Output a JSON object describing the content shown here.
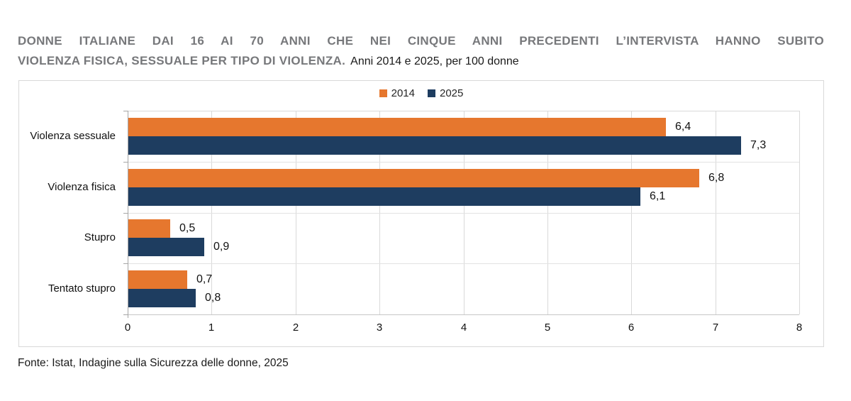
{
  "title": {
    "line1": "DONNE ITALIANE DAI 16 AI 70 ANNI CHE NEI CINQUE ANNI PRECEDENTI L’INTERVISTA HANNO SUBITO",
    "line2_bold": "VIOLENZA FISICA, SESSUALE PER TIPO DI VIOLENZA.",
    "line2_regular": "Anni 2014 e 2025, per 100 donne"
  },
  "footer": {
    "source": "Fonte: Istat, Indagine sulla Sicurezza delle donne, 2025"
  },
  "colors": {
    "series_2014": "#e6772e",
    "series_2025": "#1e3d60",
    "gridline": "#d9d9d9",
    "axis": "#a6a6a6"
  },
  "chart_data": {
    "type": "bar",
    "orientation": "horizontal",
    "title": "Donne italiane dai 16 ai 70 anni che nei cinque anni precedenti l’intervista hanno subito violenza fisica, sessuale per tipo di violenza",
    "subtitle": "Anni 2014 e 2025, per 100 donne",
    "categories": [
      "Violenza sessuale",
      "Violenza fisica",
      "Stupro",
      "Tentato stupro"
    ],
    "series": [
      {
        "name": "2014",
        "color": "#e6772e",
        "values": [
          6.4,
          6.8,
          0.5,
          0.7
        ],
        "value_labels": [
          "6,4",
          "6,8",
          "0,5",
          "0,7"
        ]
      },
      {
        "name": "2025",
        "color": "#1e3d60",
        "values": [
          7.3,
          6.1,
          0.9,
          0.8
        ],
        "value_labels": [
          "7,3",
          "6,1",
          "0,9",
          "0,8"
        ]
      }
    ],
    "xlim": [
      0,
      8
    ],
    "xticks": [
      0,
      1,
      2,
      3,
      4,
      5,
      6,
      7,
      8
    ],
    "grid": true,
    "legend_position": "top-center"
  }
}
